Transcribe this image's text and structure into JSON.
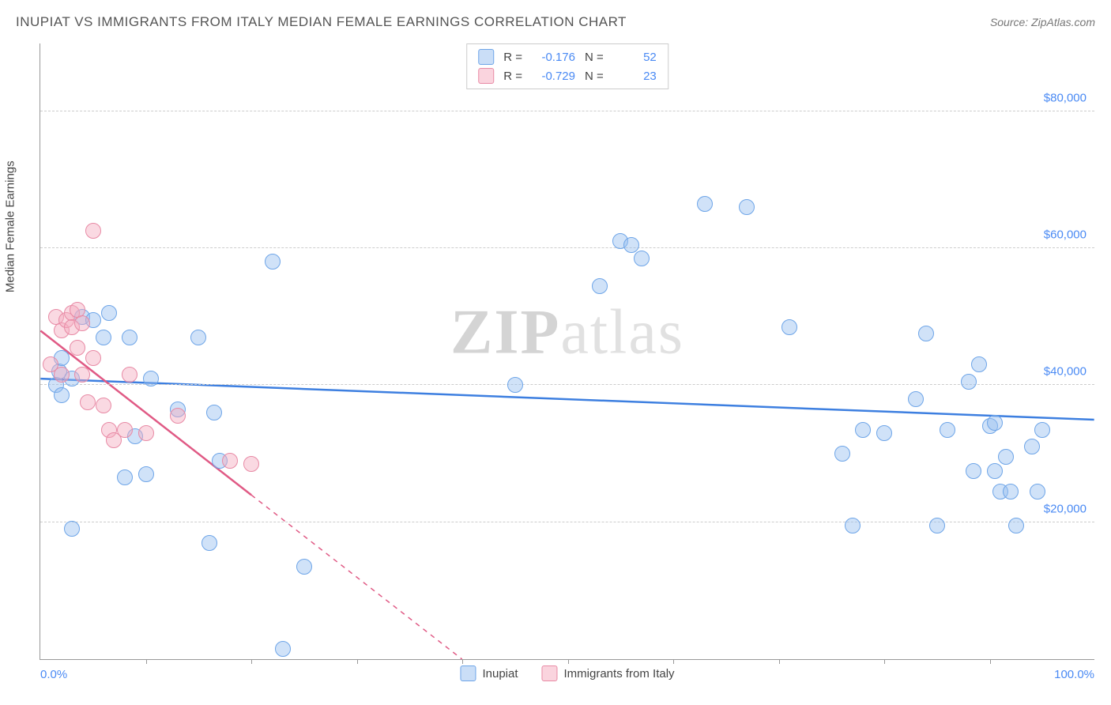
{
  "title": "INUPIAT VS IMMIGRANTS FROM ITALY MEDIAN FEMALE EARNINGS CORRELATION CHART",
  "source_label": "Source: ",
  "source_value": "ZipAtlas.com",
  "watermark": {
    "part1": "ZIP",
    "part2": "atlas"
  },
  "chart": {
    "type": "scatter",
    "xlim": [
      0,
      100
    ],
    "ylim": [
      0,
      90000
    ],
    "x_axis": {
      "label_left": "0.0%",
      "label_right": "100.0%",
      "tick_positions": [
        10,
        20,
        30,
        40,
        50,
        60,
        70,
        80,
        90
      ],
      "tick_color": "#999999"
    },
    "y_axis": {
      "label": "Median Female Earnings",
      "gridlines": [
        20000,
        40000,
        60000,
        80000
      ],
      "grid_labels": [
        "$20,000",
        "$40,000",
        "$60,000",
        "$80,000"
      ],
      "grid_color": "#cccccc",
      "label_color": "#4a8af4"
    },
    "background_color": "#ffffff",
    "point_radius": 10,
    "series": [
      {
        "name": "Inupiat",
        "color_fill": "rgba(150,190,240,0.45)",
        "color_stroke": "#6ea5e8",
        "R": "-0.176",
        "N": "52",
        "trend": {
          "x1": 0,
          "y1": 41000,
          "x2": 100,
          "y2": 35000,
          "color": "#3d7fe0",
          "width": 2.5,
          "dash_from_x": null
        },
        "points": [
          [
            1.5,
            40000
          ],
          [
            1.8,
            42000
          ],
          [
            2.0,
            38500
          ],
          [
            2.0,
            44000
          ],
          [
            3.0,
            41000
          ],
          [
            3.0,
            19000
          ],
          [
            4.0,
            50000
          ],
          [
            5.0,
            49500
          ],
          [
            6.0,
            47000
          ],
          [
            6.5,
            50500
          ],
          [
            8.0,
            26500
          ],
          [
            8.5,
            47000
          ],
          [
            9.0,
            32500
          ],
          [
            10.0,
            27000
          ],
          [
            10.5,
            41000
          ],
          [
            13.0,
            36500
          ],
          [
            15.0,
            47000
          ],
          [
            16.0,
            17000
          ],
          [
            16.5,
            36000
          ],
          [
            17.0,
            29000
          ],
          [
            22.0,
            58000
          ],
          [
            23.0,
            1500
          ],
          [
            25.0,
            13500
          ],
          [
            45.0,
            40000
          ],
          [
            53.0,
            54500
          ],
          [
            55.0,
            61000
          ],
          [
            56.0,
            60500
          ],
          [
            57.0,
            58500
          ],
          [
            63.0,
            66500
          ],
          [
            67.0,
            66000
          ],
          [
            71.0,
            48500
          ],
          [
            76.0,
            30000
          ],
          [
            77.0,
            19500
          ],
          [
            78.0,
            33500
          ],
          [
            80.0,
            33000
          ],
          [
            83.0,
            38000
          ],
          [
            84.0,
            47500
          ],
          [
            85.0,
            19500
          ],
          [
            86.0,
            33500
          ],
          [
            88.0,
            40500
          ],
          [
            88.5,
            27500
          ],
          [
            89.0,
            43000
          ],
          [
            90.0,
            34000
          ],
          [
            90.5,
            34500
          ],
          [
            90.5,
            27500
          ],
          [
            91.0,
            24500
          ],
          [
            91.5,
            29500
          ],
          [
            92.0,
            24500
          ],
          [
            92.5,
            19500
          ],
          [
            94.0,
            31000
          ],
          [
            94.5,
            24500
          ],
          [
            95.0,
            33500
          ]
        ]
      },
      {
        "name": "Immigrants from Italy",
        "color_fill": "rgba(245,170,190,0.45)",
        "color_stroke": "#e88aa5",
        "R": "-0.729",
        "N": "23",
        "trend": {
          "x1": 0,
          "y1": 48000,
          "x2": 40,
          "y2": 0,
          "color": "#e05a85",
          "width": 2.5,
          "dash_from_x": 20
        },
        "points": [
          [
            1.0,
            43000
          ],
          [
            1.5,
            50000
          ],
          [
            2.0,
            48000
          ],
          [
            2.0,
            41500
          ],
          [
            2.5,
            49500
          ],
          [
            3.0,
            50500
          ],
          [
            3.0,
            48500
          ],
          [
            3.5,
            51000
          ],
          [
            3.5,
            45500
          ],
          [
            4.0,
            41500
          ],
          [
            4.0,
            49000
          ],
          [
            4.5,
            37500
          ],
          [
            5.0,
            62500
          ],
          [
            5.0,
            44000
          ],
          [
            6.0,
            37000
          ],
          [
            6.5,
            33500
          ],
          [
            7.0,
            32000
          ],
          [
            8.0,
            33500
          ],
          [
            8.5,
            41500
          ],
          [
            10.0,
            33000
          ],
          [
            13.0,
            35500
          ],
          [
            18.0,
            29000
          ],
          [
            20.0,
            28500
          ]
        ]
      }
    ],
    "legend_top": {
      "r_label": "R =",
      "n_label": "N ="
    },
    "legend_bottom": {
      "items": [
        "Inupiat",
        "Immigrants from Italy"
      ]
    }
  }
}
